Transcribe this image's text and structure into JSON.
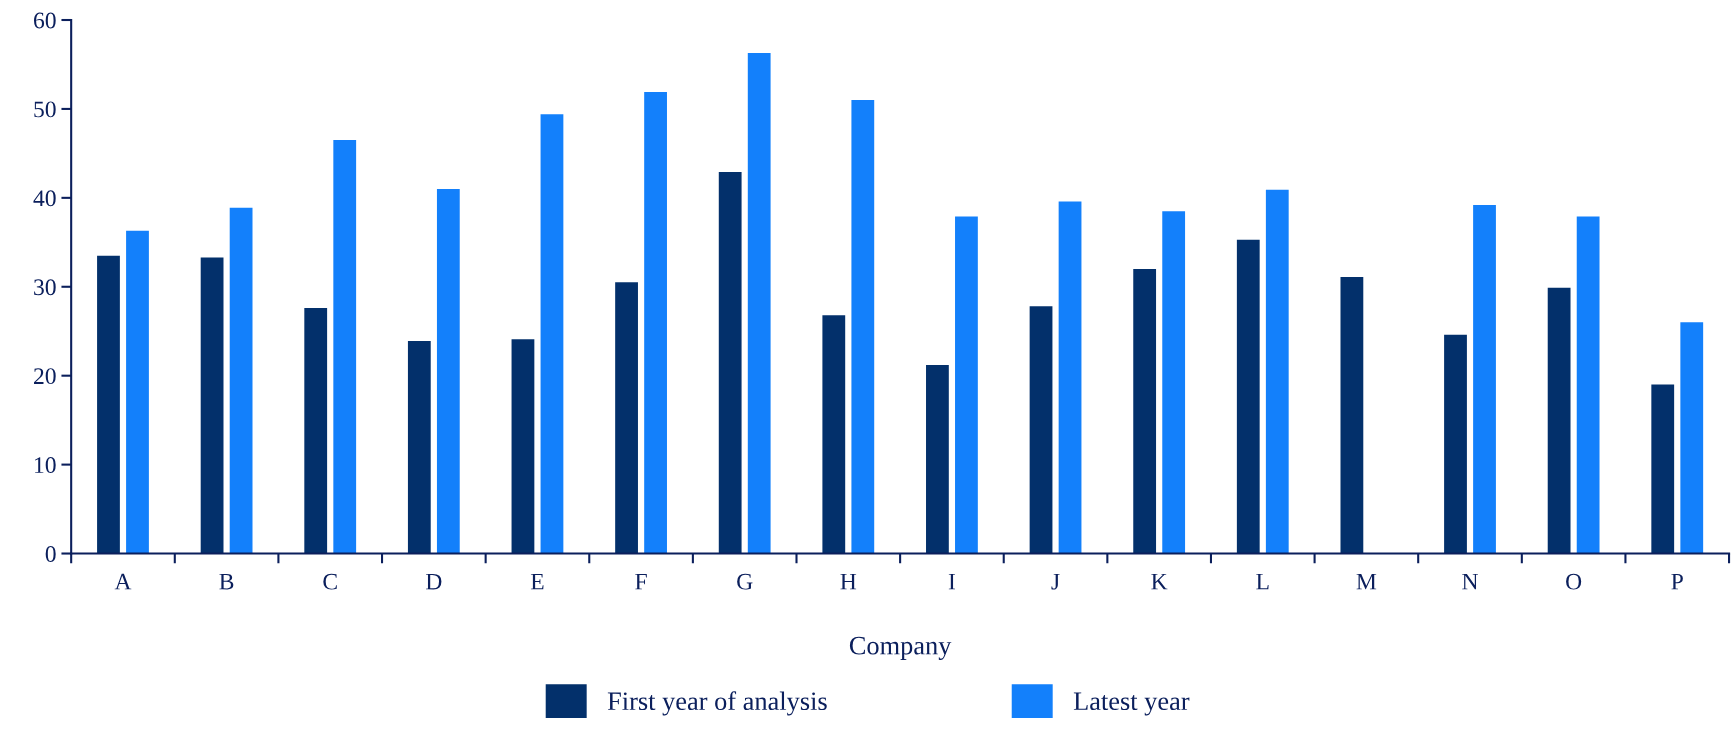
{
  "chart_data": {
    "type": "bar",
    "xlabel": "Company",
    "categories": [
      "A",
      "B",
      "C",
      "D",
      "E",
      "F",
      "G",
      "H",
      "I",
      "J",
      "K",
      "L",
      "M",
      "N",
      "O",
      "P"
    ],
    "series": [
      {
        "name": "First year of analysis",
        "color": "#03306b",
        "values": [
          33.5,
          33.3,
          27.6,
          23.9,
          24.1,
          30.5,
          42.9,
          26.8,
          21.2,
          27.8,
          32.0,
          35.3,
          31.1,
          24.6,
          29.9,
          19.0
        ]
      },
      {
        "name": "Latest year",
        "color": "#1380fb",
        "values": [
          36.3,
          38.9,
          46.5,
          41.0,
          49.4,
          51.9,
          56.3,
          51.0,
          37.9,
          39.6,
          38.5,
          40.9,
          null,
          39.2,
          37.9,
          26.0
        ]
      }
    ],
    "ylim": [
      0,
      60
    ],
    "yticks": [
      0,
      10,
      20,
      30,
      40,
      50,
      60
    ],
    "grid": false,
    "legend": "bottom"
  }
}
